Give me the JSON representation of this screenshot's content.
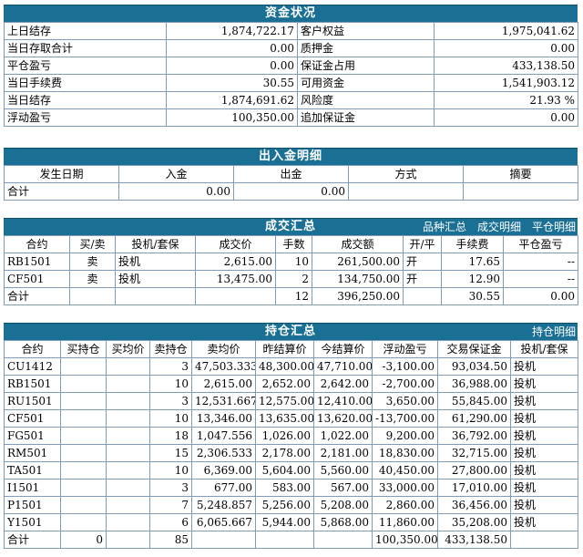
{
  "fund": {
    "title": "资金状况",
    "rows": [
      {
        "k1": "上日结存",
        "v1": "1,874,722.17",
        "k2": "客户权益",
        "v2": "1,975,041.62"
      },
      {
        "k1": "当日存取合计",
        "v1": "0.00",
        "k2": "质押金",
        "v2": "0.00"
      },
      {
        "k1": "平仓盈亏",
        "v1": "0.00",
        "k2": "保证金占用",
        "v2": "433,138.50"
      },
      {
        "k1": "当日手续费",
        "v1": "30.55",
        "k2": "可用资金",
        "v2": "1,541,903.12"
      },
      {
        "k1": "当日结存",
        "v1": "1,874,691.62",
        "k2": "风险度",
        "v2": "21.93 %"
      },
      {
        "k1": "浮动盈亏",
        "v1": "100,350.00",
        "k2": "追加保证金",
        "v2": "0.00"
      }
    ]
  },
  "inout": {
    "title": "出入金明细",
    "headers": [
      "发生日期",
      "入金",
      "出金",
      "方式",
      "摘要"
    ],
    "total": {
      "label": "合计",
      "in": "0.00",
      "out": "0.00"
    }
  },
  "trades": {
    "title": "成交汇总",
    "links": [
      "品种汇总",
      "成交明细",
      "平仓明细"
    ],
    "headers": [
      "合约",
      "买/卖",
      "投机/套保",
      "成交价",
      "手数",
      "成交额",
      "开/平",
      "手续费",
      "平仓盈亏"
    ],
    "rows": [
      [
        "RB1501",
        "卖",
        "投机",
        "2,615.00",
        "10",
        "261,500.00",
        "开",
        "17.65",
        "--"
      ],
      [
        "CF501",
        "卖",
        "投机",
        "13,475.00",
        "2",
        "134,750.00",
        "开",
        "12.90",
        "--"
      ]
    ],
    "total": {
      "label": "合计",
      "qty": "12",
      "amount": "396,250.00",
      "fee": "30.55",
      "pnl": "0.00"
    }
  },
  "positions": {
    "title": "持仓汇总",
    "links": [
      "持仓明细"
    ],
    "headers": [
      "合约",
      "买持仓",
      "买均价",
      "卖持仓",
      "卖均价",
      "昨结算价",
      "今结算价",
      "浮动盈亏",
      "交易保证金",
      "投机/套保"
    ],
    "rows": [
      [
        "CU1412",
        "",
        "",
        "3",
        "47,503.333",
        "48,300.00",
        "47,710.00",
        "-3,100.00",
        "93,034.50",
        "投机"
      ],
      [
        "RB1501",
        "",
        "",
        "10",
        "2,615.00",
        "2,652.00",
        "2,642.00",
        "-2,700.00",
        "36,988.00",
        "投机"
      ],
      [
        "RU1501",
        "",
        "",
        "3",
        "12,531.667",
        "12,575.00",
        "12,410.00",
        "3,650.00",
        "55,845.00",
        "投机"
      ],
      [
        "CF501",
        "",
        "",
        "10",
        "13,346.00",
        "13,635.00",
        "13,620.00",
        "-13,700.00",
        "61,290.00",
        "投机"
      ],
      [
        "FG501",
        "",
        "",
        "18",
        "1,047.556",
        "1,026.00",
        "1,022.00",
        "9,200.00",
        "36,792.00",
        "投机"
      ],
      [
        "RM501",
        "",
        "",
        "15",
        "2,306.533",
        "2,178.00",
        "2,181.00",
        "18,830.00",
        "32,715.00",
        "投机"
      ],
      [
        "TA501",
        "",
        "",
        "10",
        "6,369.00",
        "5,604.00",
        "5,560.00",
        "40,450.00",
        "27,800.00",
        "投机"
      ],
      [
        "I1501",
        "",
        "",
        "3",
        "677.00",
        "583.00",
        "567.00",
        "33,000.00",
        "17,010.00",
        "投机"
      ],
      [
        "P1501",
        "",
        "",
        "7",
        "5,248.857",
        "5,256.00",
        "5,208.00",
        "2,860.00",
        "36,456.00",
        "投机"
      ],
      [
        "Y1501",
        "",
        "",
        "6",
        "6,065.667",
        "5,944.00",
        "5,868.00",
        "11,860.00",
        "35,208.00",
        "投机"
      ]
    ],
    "total": {
      "label": "合计",
      "buy": "0",
      "sell": "85",
      "pnl": "100,350.00",
      "margin": "433,138.50"
    }
  }
}
